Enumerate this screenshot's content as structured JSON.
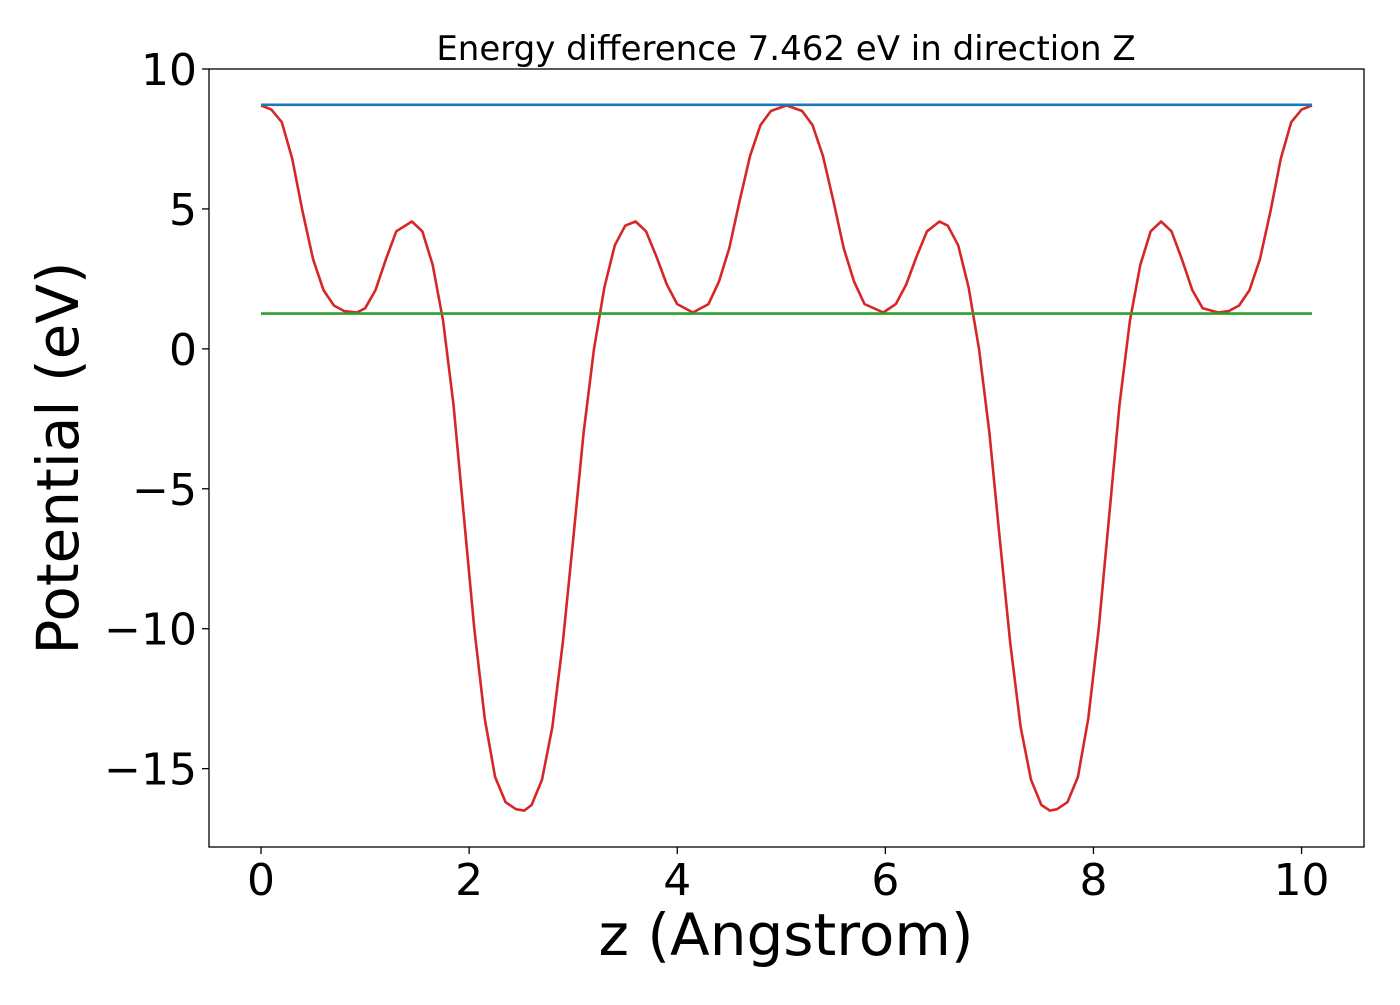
{
  "chart_data": {
    "type": "line",
    "title": "Energy difference 7.462 eV in direction Z",
    "xlabel": "z (Angstrom)",
    "ylabel": "Potential (eV)",
    "xlim": [
      -0.5,
      10.6
    ],
    "ylim": [
      -17.8,
      10
    ],
    "xticks": [
      0,
      2,
      4,
      6,
      8,
      10
    ],
    "yticks": [
      10,
      5,
      0,
      -5,
      -10,
      -15
    ],
    "xtick_labels": [
      "0",
      "2",
      "4",
      "6",
      "8",
      "10"
    ],
    "ytick_labels": [
      "10",
      "5",
      "0",
      "−5",
      "−10",
      "−15"
    ],
    "grid": false,
    "legend": "none",
    "series": [
      {
        "color": "#d62728",
        "x": [
          0.0,
          0.1,
          0.2,
          0.3,
          0.4,
          0.5,
          0.6,
          0.7,
          0.8,
          0.92,
          1.0,
          1.1,
          1.2,
          1.3,
          1.45,
          1.55,
          1.65,
          1.75,
          1.85,
          1.95,
          2.05,
          2.15,
          2.25,
          2.35,
          2.45,
          2.53,
          2.6,
          2.7,
          2.8,
          2.9,
          3.0,
          3.1,
          3.2,
          3.3,
          3.4,
          3.5,
          3.6,
          3.7,
          3.8,
          3.9,
          4.0,
          4.15,
          4.3,
          4.4,
          4.5,
          4.6,
          4.7,
          4.8,
          4.9,
          5.05,
          5.2,
          5.3,
          5.4,
          5.5,
          5.6,
          5.7,
          5.8,
          5.98,
          6.1,
          6.2,
          6.3,
          6.4,
          6.52,
          6.6,
          6.7,
          6.8,
          6.9,
          7.0,
          7.1,
          7.2,
          7.3,
          7.4,
          7.5,
          7.58,
          7.65,
          7.75,
          7.85,
          7.95,
          8.05,
          8.15,
          8.25,
          8.35,
          8.45,
          8.55,
          8.65,
          8.75,
          8.85,
          8.95,
          9.05,
          9.2,
          9.3,
          9.4,
          9.5,
          9.6,
          9.7,
          9.8,
          9.9,
          10.0,
          10.1
        ],
        "y": [
          8.7,
          8.55,
          8.1,
          6.8,
          4.9,
          3.2,
          2.1,
          1.55,
          1.35,
          1.3,
          1.45,
          2.1,
          3.2,
          4.2,
          4.55,
          4.2,
          3.0,
          1.0,
          -2.0,
          -6.0,
          -10.0,
          -13.2,
          -15.3,
          -16.2,
          -16.45,
          -16.5,
          -16.3,
          -15.4,
          -13.5,
          -10.5,
          -6.8,
          -3.0,
          0.0,
          2.2,
          3.7,
          4.4,
          4.55,
          4.2,
          3.3,
          2.3,
          1.6,
          1.3,
          1.6,
          2.4,
          3.6,
          5.3,
          6.9,
          8.0,
          8.5,
          8.7,
          8.5,
          8.0,
          6.9,
          5.3,
          3.6,
          2.4,
          1.6,
          1.3,
          1.6,
          2.3,
          3.3,
          4.2,
          4.55,
          4.4,
          3.7,
          2.2,
          0.0,
          -3.0,
          -6.8,
          -10.5,
          -13.5,
          -15.4,
          -16.3,
          -16.5,
          -16.45,
          -16.2,
          -15.3,
          -13.2,
          -10.0,
          -6.0,
          -2.0,
          1.0,
          3.0,
          4.2,
          4.55,
          4.2,
          3.2,
          2.1,
          1.45,
          1.3,
          1.35,
          1.55,
          2.1,
          3.2,
          4.9,
          6.8,
          8.1,
          8.55,
          8.7
        ]
      },
      {
        "color": "#1f77b4",
        "x": [
          0.0,
          10.1
        ],
        "y": [
          8.72,
          8.72
        ]
      },
      {
        "color": "#2ca02c",
        "x": [
          0.0,
          10.1
        ],
        "y": [
          1.26,
          1.26
        ]
      }
    ]
  }
}
